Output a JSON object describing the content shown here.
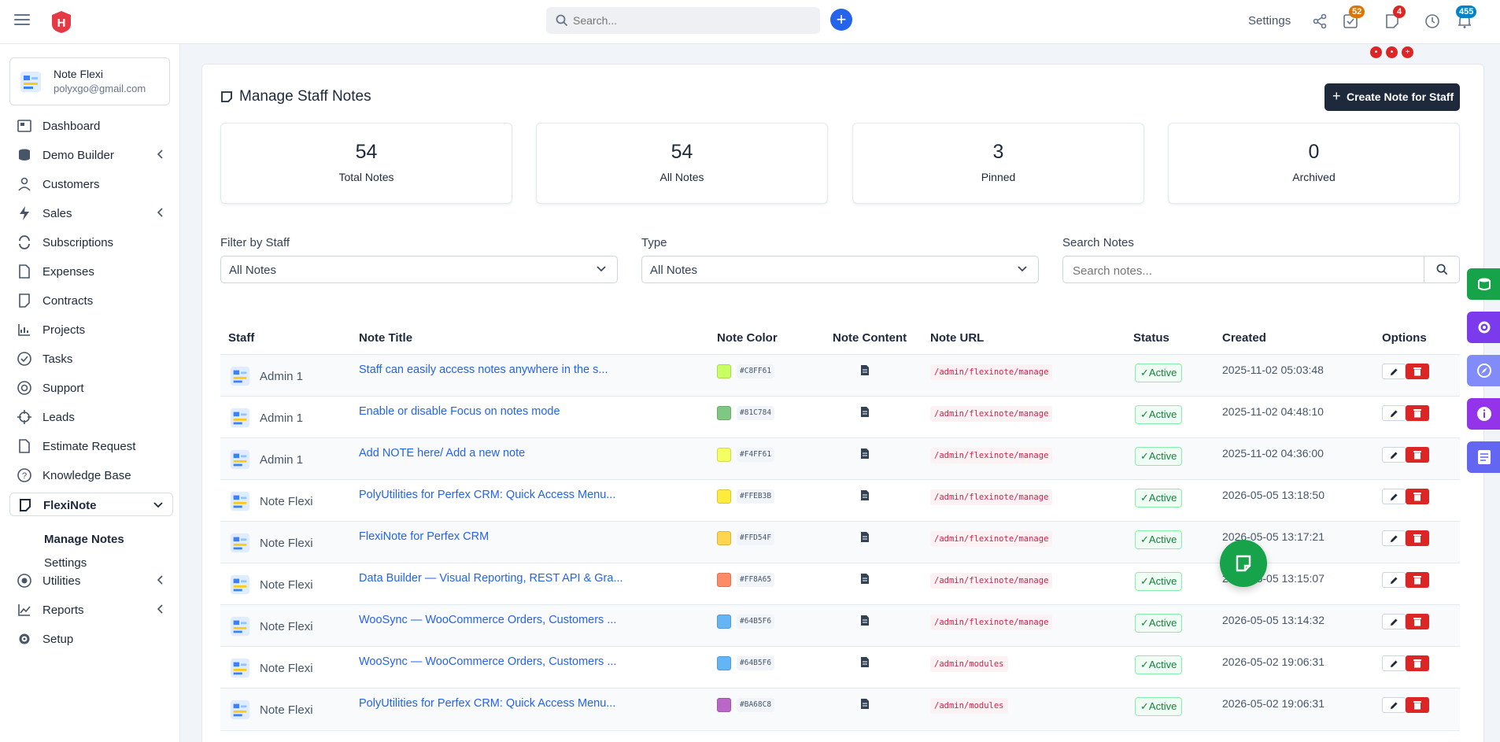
{
  "topbar": {
    "search_placeholder": "Search...",
    "settings_label": "Settings",
    "badges": {
      "tasks": "52",
      "notes": "4",
      "notifications": "455"
    }
  },
  "user": {
    "name": "Note Flexi",
    "email": "polyxgo@gmail.com"
  },
  "sidebar": {
    "items": [
      {
        "label": "Dashboard",
        "icon": "dashboard-icon"
      },
      {
        "label": "Demo Builder",
        "icon": "database-icon"
      },
      {
        "label": "Customers",
        "icon": "user-icon"
      },
      {
        "label": "Sales",
        "icon": "bolt-icon"
      },
      {
        "label": "Subscriptions",
        "icon": "refresh-icon"
      },
      {
        "label": "Expenses",
        "icon": "file-icon"
      },
      {
        "label": "Contracts",
        "icon": "contract-icon"
      },
      {
        "label": "Projects",
        "icon": "chart-icon"
      },
      {
        "label": "Tasks",
        "icon": "check-circle-icon"
      },
      {
        "label": "Support",
        "icon": "lifebuoy-icon"
      },
      {
        "label": "Leads",
        "icon": "crosshair-icon"
      },
      {
        "label": "Estimate Request",
        "icon": "file-icon"
      },
      {
        "label": "Knowledge Base",
        "icon": "question-icon"
      },
      {
        "label": "FlexiNote",
        "icon": "note-icon"
      },
      {
        "label": "Utilities",
        "icon": "dot-circle-icon"
      },
      {
        "label": "Reports",
        "icon": "line-chart-icon"
      },
      {
        "label": "Setup",
        "icon": "gear-icon"
      }
    ],
    "submenu": [
      "Manage Notes",
      "Settings"
    ]
  },
  "page": {
    "title": "Manage Staff Notes",
    "create_label": "Create Note for Staff"
  },
  "stats": [
    {
      "value": "54",
      "label": "Total Notes"
    },
    {
      "value": "54",
      "label": "All Notes"
    },
    {
      "value": "3",
      "label": "Pinned"
    },
    {
      "value": "0",
      "label": "Archived"
    }
  ],
  "filters": {
    "staff_label": "Filter by Staff",
    "staff_value": "All Notes",
    "type_label": "Type",
    "type_value": "All Notes",
    "search_label": "Search Notes",
    "search_placeholder": "Search notes..."
  },
  "table": {
    "headers": [
      "Staff",
      "Note Title",
      "Note Color",
      "Note Content",
      "Note URL",
      "Status",
      "Created",
      "Options"
    ],
    "rows": [
      {
        "staff": "Admin 1",
        "title": "Staff can easily access notes anywhere in the s...",
        "color": "#C8FF61",
        "url": "/admin/flexinote/manage",
        "status": "Active",
        "created": "2025-11-02 05:03:48"
      },
      {
        "staff": "Admin 1",
        "title": "Enable or disable Focus on notes mode",
        "color": "#81C784",
        "url": "/admin/flexinote/manage",
        "status": "Active",
        "created": "2025-11-02 04:48:10"
      },
      {
        "staff": "Admin 1",
        "title": "Add NOTE here/ Add a new note",
        "color": "#F4FF61",
        "url": "/admin/flexinote/manage",
        "status": "Active",
        "created": "2025-11-02 04:36:00"
      },
      {
        "staff": "Note Flexi",
        "title": "PolyUtilities for Perfex CRM: Quick Access Menu...",
        "color": "#FFEB3B",
        "url": "/admin/flexinote/manage",
        "status": "Active",
        "created": "2026-05-05 13:18:50"
      },
      {
        "staff": "Note Flexi",
        "title": "FlexiNote for Perfex CRM",
        "color": "#FFD54F",
        "url": "/admin/flexinote/manage",
        "status": "Active",
        "created": "2026-05-05 13:17:21"
      },
      {
        "staff": "Note Flexi",
        "title": "Data Builder — Visual Reporting, REST API & Gra...",
        "color": "#FF8A65",
        "url": "/admin/flexinote/manage",
        "status": "Active",
        "created": "2026-05-05 13:15:07"
      },
      {
        "staff": "Note Flexi",
        "title": "WooSync — WooCommerce Orders, Customers ...",
        "color": "#64B5F6",
        "url": "/admin/flexinote/manage",
        "status": "Active",
        "created": "2026-05-05 13:14:32"
      },
      {
        "staff": "Note Flexi",
        "title": "WooSync — WooCommerce Orders, Customers ...",
        "color": "#64B5F6",
        "url": "/admin/modules",
        "status": "Active",
        "created": "2026-05-02 19:06:31"
      },
      {
        "staff": "Note Flexi",
        "title": "PolyUtilities for Perfex CRM: Quick Access Menu...",
        "color": "#BA68C8",
        "url": "/admin/modules",
        "status": "Active",
        "created": "2026-05-02 19:06:31"
      }
    ]
  },
  "colors": {
    "accent": "#2563eb",
    "danger": "#dc2626",
    "dark_button": "#1e293b",
    "success": "#16a34a"
  }
}
